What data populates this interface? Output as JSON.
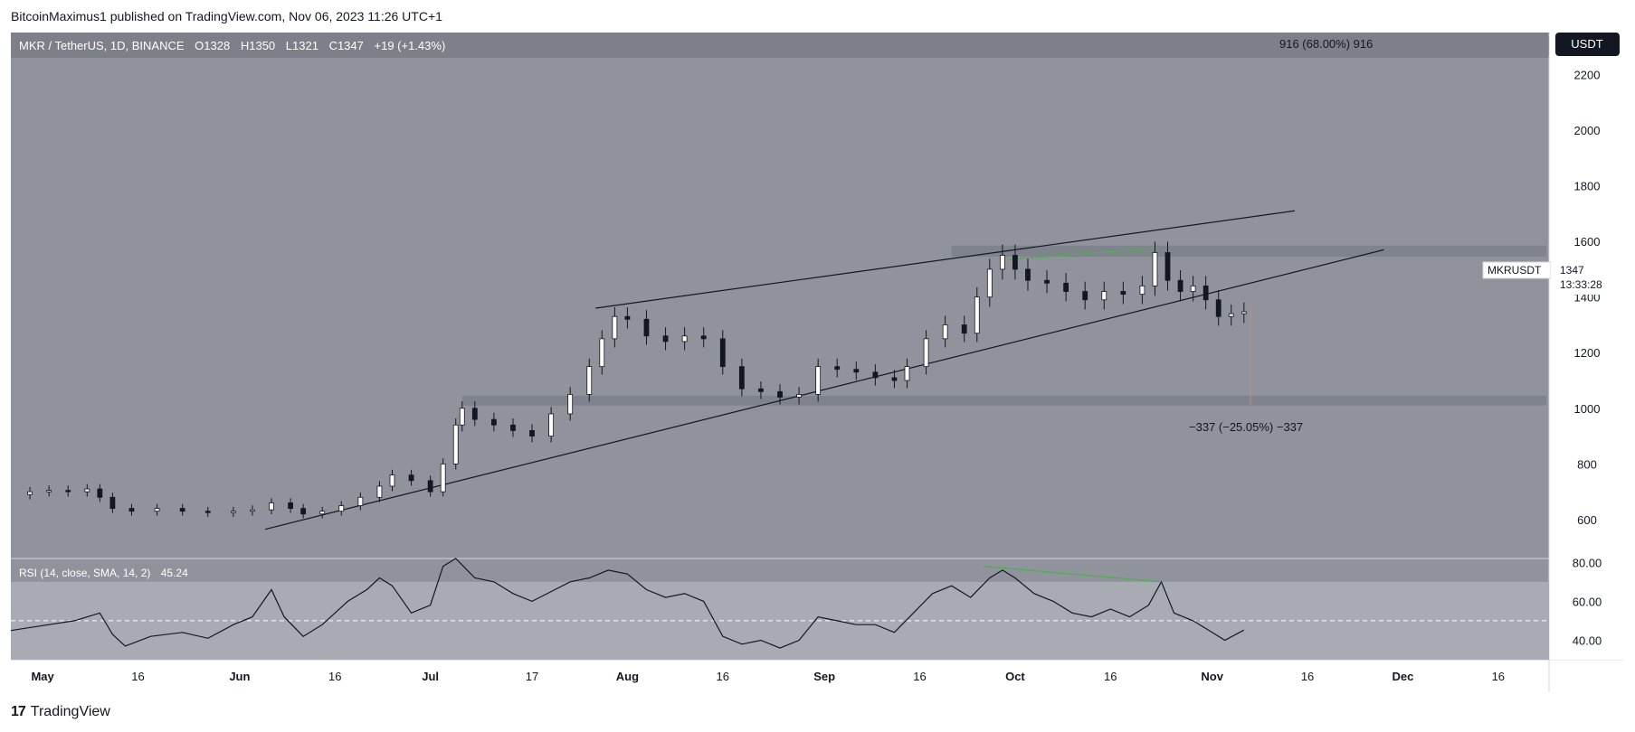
{
  "header": {
    "publisher_text": "BitcoinMaximus1 published on TradingView.com, Nov 06, 2023 11:26 UTC+1"
  },
  "footer": {
    "logo_text": "TradingView"
  },
  "legend": {
    "symbol": "MKR / TetherUS, 1D, BINANCE",
    "o_label": "O",
    "o_value": "1328",
    "h_label": "H",
    "h_value": "1350",
    "l_label": "L",
    "l_value": "1321",
    "c_label": "C",
    "c_value": "1347",
    "change": "+19 (+1.43%)"
  },
  "currency_button": "USDT",
  "price_tag": {
    "symbol": "MKRUSDT",
    "price": "1347",
    "countdown": "13:33:28"
  },
  "measurements": {
    "up_label": "916 (68.00%) 916",
    "down_label": "−337 (−25.05%) −337"
  },
  "rsi_legend": {
    "label": "RSI (14, close, SMA, 14, 2)",
    "value": "45.24"
  },
  "colors": {
    "panel_bg": "#90939c",
    "rsi_band": "#a8abb3",
    "candle_up": "#ffffff",
    "candle_down": "#131722",
    "divergence": "#4caf50",
    "zone": "#7d8089"
  },
  "chart_data": {
    "type": "candlestick",
    "title": "MKR / TetherUS, 1D, BINANCE",
    "y_ticks": [
      600,
      800,
      1000,
      1200,
      1400,
      1600,
      1800,
      2000,
      2200
    ],
    "y_range": [
      460,
      2260
    ],
    "x_range": [
      "2023-04-26",
      "2023-12-24"
    ],
    "x_ticks": [
      {
        "label": "May",
        "date": "2023-05-01",
        "bold": true
      },
      {
        "label": "16",
        "date": "2023-05-16",
        "bold": false
      },
      {
        "label": "Jun",
        "date": "2023-06-01",
        "bold": true
      },
      {
        "label": "16",
        "date": "2023-06-16",
        "bold": false
      },
      {
        "label": "Jul",
        "date": "2023-07-01",
        "bold": true
      },
      {
        "label": "17",
        "date": "2023-07-17",
        "bold": false
      },
      {
        "label": "Aug",
        "date": "2023-08-01",
        "bold": true
      },
      {
        "label": "16",
        "date": "2023-08-16",
        "bold": false
      },
      {
        "label": "Sep",
        "date": "2023-09-01",
        "bold": true
      },
      {
        "label": "16",
        "date": "2023-09-16",
        "bold": false
      },
      {
        "label": "Oct",
        "date": "2023-10-01",
        "bold": true
      },
      {
        "label": "16",
        "date": "2023-10-16",
        "bold": false
      },
      {
        "label": "Nov",
        "date": "2023-11-01",
        "bold": true
      },
      {
        "label": "16",
        "date": "2023-11-16",
        "bold": false
      },
      {
        "label": "Dec",
        "date": "2023-12-01",
        "bold": true
      },
      {
        "label": "16",
        "date": "2023-12-16",
        "bold": false
      }
    ],
    "close_series": [
      [
        "2023-04-26",
        690
      ],
      [
        "2023-04-29",
        700
      ],
      [
        "2023-05-02",
        705
      ],
      [
        "2023-05-05",
        700
      ],
      [
        "2023-05-08",
        710
      ],
      [
        "2023-05-10",
        680
      ],
      [
        "2023-05-12",
        640
      ],
      [
        "2023-05-15",
        630
      ],
      [
        "2023-05-19",
        640
      ],
      [
        "2023-05-23",
        630
      ],
      [
        "2023-05-27",
        625
      ],
      [
        "2023-05-31",
        630
      ],
      [
        "2023-06-03",
        635
      ],
      [
        "2023-06-06",
        660
      ],
      [
        "2023-06-09",
        640
      ],
      [
        "2023-06-11",
        620
      ],
      [
        "2023-06-14",
        630
      ],
      [
        "2023-06-17",
        650
      ],
      [
        "2023-06-20",
        680
      ],
      [
        "2023-06-23",
        720
      ],
      [
        "2023-06-25",
        760
      ],
      [
        "2023-06-28",
        740
      ],
      [
        "2023-07-01",
        700
      ],
      [
        "2023-07-03",
        800
      ],
      [
        "2023-07-05",
        940
      ],
      [
        "2023-07-06",
        1000
      ],
      [
        "2023-07-08",
        960
      ],
      [
        "2023-07-11",
        940
      ],
      [
        "2023-07-14",
        920
      ],
      [
        "2023-07-17",
        900
      ],
      [
        "2023-07-20",
        980
      ],
      [
        "2023-07-23",
        1050
      ],
      [
        "2023-07-26",
        1150
      ],
      [
        "2023-07-28",
        1250
      ],
      [
        "2023-07-30",
        1330
      ],
      [
        "2023-08-01",
        1320
      ],
      [
        "2023-08-04",
        1260
      ],
      [
        "2023-08-07",
        1240
      ],
      [
        "2023-08-10",
        1260
      ],
      [
        "2023-08-13",
        1250
      ],
      [
        "2023-08-16",
        1150
      ],
      [
        "2023-08-19",
        1070
      ],
      [
        "2023-08-22",
        1060
      ],
      [
        "2023-08-25",
        1040
      ],
      [
        "2023-08-28",
        1050
      ],
      [
        "2023-08-31",
        1150
      ],
      [
        "2023-09-03",
        1140
      ],
      [
        "2023-09-06",
        1130
      ],
      [
        "2023-09-09",
        1110
      ],
      [
        "2023-09-12",
        1100
      ],
      [
        "2023-09-14",
        1150
      ],
      [
        "2023-09-17",
        1250
      ],
      [
        "2023-09-20",
        1300
      ],
      [
        "2023-09-23",
        1270
      ],
      [
        "2023-09-25",
        1400
      ],
      [
        "2023-09-27",
        1500
      ],
      [
        "2023-09-29",
        1550
      ],
      [
        "2023-10-01",
        1500
      ],
      [
        "2023-10-03",
        1460
      ],
      [
        "2023-10-06",
        1450
      ],
      [
        "2023-10-09",
        1420
      ],
      [
        "2023-10-12",
        1390
      ],
      [
        "2023-10-15",
        1420
      ],
      [
        "2023-10-18",
        1410
      ],
      [
        "2023-10-21",
        1440
      ],
      [
        "2023-10-23",
        1560
      ],
      [
        "2023-10-25",
        1460
      ],
      [
        "2023-10-27",
        1420
      ],
      [
        "2023-10-29",
        1440
      ],
      [
        "2023-10-31",
        1390
      ],
      [
        "2023-11-02",
        1330
      ],
      [
        "2023-11-04",
        1340
      ],
      [
        "2023-11-06",
        1347
      ]
    ],
    "rsi": {
      "ticks": [
        40,
        60,
        80
      ],
      "range": [
        30,
        82
      ],
      "band": [
        30,
        70
      ],
      "midline": 50,
      "values": [
        [
          "2023-04-26",
          45
        ],
        [
          "2023-05-02",
          48
        ],
        [
          "2023-05-06",
          50
        ],
        [
          "2023-05-10",
          54
        ],
        [
          "2023-05-12",
          43
        ],
        [
          "2023-05-14",
          37
        ],
        [
          "2023-05-18",
          42
        ],
        [
          "2023-05-23",
          44
        ],
        [
          "2023-05-27",
          41
        ],
        [
          "2023-05-31",
          48
        ],
        [
          "2023-06-03",
          52
        ],
        [
          "2023-06-06",
          66
        ],
        [
          "2023-06-08",
          52
        ],
        [
          "2023-06-11",
          42
        ],
        [
          "2023-06-14",
          48
        ],
        [
          "2023-06-18",
          60
        ],
        [
          "2023-06-21",
          66
        ],
        [
          "2023-06-23",
          72
        ],
        [
          "2023-06-25",
          68
        ],
        [
          "2023-06-28",
          54
        ],
        [
          "2023-07-01",
          58
        ],
        [
          "2023-07-03",
          78
        ],
        [
          "2023-07-05",
          82
        ],
        [
          "2023-07-08",
          72
        ],
        [
          "2023-07-11",
          70
        ],
        [
          "2023-07-14",
          64
        ],
        [
          "2023-07-17",
          60
        ],
        [
          "2023-07-20",
          65
        ],
        [
          "2023-07-23",
          70
        ],
        [
          "2023-07-26",
          72
        ],
        [
          "2023-07-29",
          76
        ],
        [
          "2023-08-01",
          74
        ],
        [
          "2023-08-04",
          66
        ],
        [
          "2023-08-07",
          62
        ],
        [
          "2023-08-10",
          64
        ],
        [
          "2023-08-13",
          60
        ],
        [
          "2023-08-16",
          42
        ],
        [
          "2023-08-19",
          38
        ],
        [
          "2023-08-22",
          40
        ],
        [
          "2023-08-25",
          36
        ],
        [
          "2023-08-28",
          40
        ],
        [
          "2023-08-31",
          52
        ],
        [
          "2023-09-03",
          50
        ],
        [
          "2023-09-06",
          48
        ],
        [
          "2023-09-09",
          48
        ],
        [
          "2023-09-12",
          44
        ],
        [
          "2023-09-15",
          54
        ],
        [
          "2023-09-18",
          64
        ],
        [
          "2023-09-21",
          68
        ],
        [
          "2023-09-24",
          62
        ],
        [
          "2023-09-27",
          72
        ],
        [
          "2023-09-29",
          76
        ],
        [
          "2023-10-01",
          72
        ],
        [
          "2023-10-04",
          64
        ],
        [
          "2023-10-07",
          60
        ],
        [
          "2023-10-10",
          54
        ],
        [
          "2023-10-13",
          52
        ],
        [
          "2023-10-16",
          56
        ],
        [
          "2023-10-19",
          52
        ],
        [
          "2023-10-22",
          58
        ],
        [
          "2023-10-24",
          70
        ],
        [
          "2023-10-26",
          54
        ],
        [
          "2023-10-29",
          50
        ],
        [
          "2023-11-01",
          44
        ],
        [
          "2023-11-03",
          40
        ],
        [
          "2023-11-06",
          45.24
        ]
      ]
    }
  }
}
